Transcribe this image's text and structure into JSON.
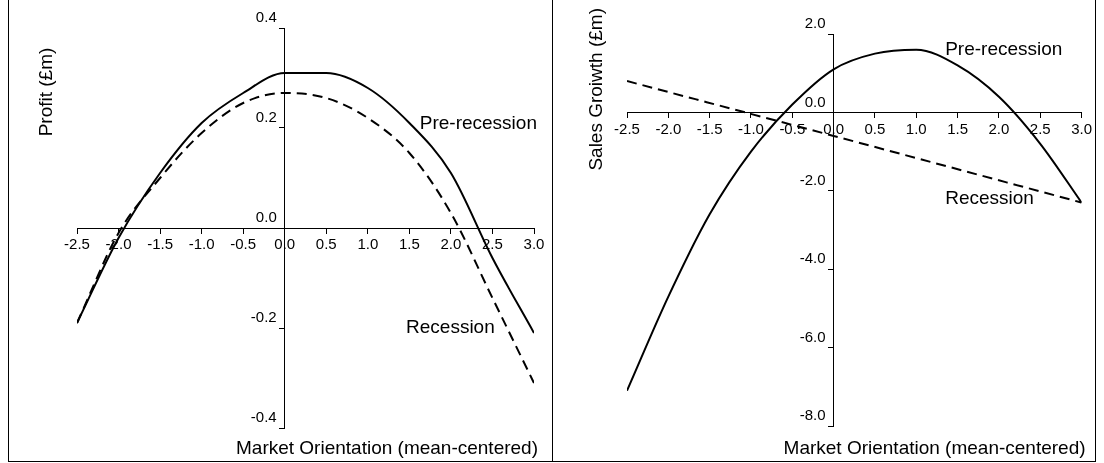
{
  "chart_data": [
    {
      "type": "line",
      "xlabel": "Market Orientation (mean-centered)",
      "ylabel": "Profit (£m)",
      "xlim": [
        -2.5,
        3.0
      ],
      "ylim": [
        -0.4,
        0.4
      ],
      "xticks": [
        {
          "value": -2.5,
          "label": "-2.5"
        },
        {
          "value": -2,
          "label": "-2.0"
        },
        {
          "value": -1.5,
          "label": "-1.5"
        },
        {
          "value": -1,
          "label": "-1.0"
        },
        {
          "value": -0.5,
          "label": "-0.5"
        },
        {
          "value": 0,
          "label": "0.0"
        },
        {
          "value": 0.5,
          "label": "0.5"
        },
        {
          "value": 1,
          "label": "1.0"
        },
        {
          "value": 1.5,
          "label": "1.5"
        },
        {
          "value": 2,
          "label": "2.0"
        },
        {
          "value": 2.5,
          "label": "2.5"
        },
        {
          "value": 3,
          "label": "3.0"
        }
      ],
      "yticks": [
        {
          "value": -0.4,
          "label": "-0.4"
        },
        {
          "value": -0.2,
          "label": "-0.2"
        },
        {
          "value": 0,
          "label": "0.0"
        },
        {
          "value": 0.2,
          "label": "0.2"
        },
        {
          "value": 0.4,
          "label": "0.4"
        }
      ],
      "marker": "none",
      "series": [
        {
          "name": "Pre-recession",
          "color": "#000000",
          "line_style": "solid",
          "x": [
            -2.5,
            -2.0,
            -1.5,
            -1.0,
            -0.5,
            0,
            0.5,
            1.0,
            1.5,
            2.0,
            2.5,
            3.0
          ],
          "values": [
            -0.19,
            -0.02,
            0.11,
            0.21,
            0.27,
            0.31,
            0.31,
            0.28,
            0.21,
            0.11,
            -0.06,
            -0.21
          ]
        },
        {
          "name": "Recession",
          "color": "#000000",
          "line_style": "dashed",
          "x": [
            -2.5,
            -2.0,
            -1.5,
            -1.0,
            -0.5,
            0,
            0.5,
            1.0,
            1.5,
            2.0,
            2.5,
            3.0
          ],
          "values": [
            -0.19,
            -0.01,
            0.1,
            0.19,
            0.25,
            0.27,
            0.26,
            0.22,
            0.15,
            0.03,
            -0.14,
            -0.31
          ]
        }
      ]
    },
    {
      "type": "line",
      "xlabel": "Market Orientation (mean-centered)",
      "ylabel": "Sales Groiwth (£m)",
      "xlim": [
        -2.5,
        3.0
      ],
      "ylim": [
        -8.0,
        2.0
      ],
      "xticks": [
        {
          "value": -2.5,
          "label": "-2.5"
        },
        {
          "value": -2,
          "label": "-2.0"
        },
        {
          "value": -1.5,
          "label": "-1.5"
        },
        {
          "value": -1,
          "label": "-1.0"
        },
        {
          "value": -0.5,
          "label": "-0.5"
        },
        {
          "value": 0,
          "label": "0.0"
        },
        {
          "value": 0.5,
          "label": "0.5"
        },
        {
          "value": 1,
          "label": "1.0"
        },
        {
          "value": 1.5,
          "label": "1.5"
        },
        {
          "value": 2,
          "label": "2.0"
        },
        {
          "value": 2.5,
          "label": "2.5"
        },
        {
          "value": 3,
          "label": "3.0"
        }
      ],
      "yticks": [
        {
          "value": -8,
          "label": "-8.0"
        },
        {
          "value": -6,
          "label": "-6.0"
        },
        {
          "value": -4,
          "label": "-4.0"
        },
        {
          "value": -2,
          "label": "-2.0"
        },
        {
          "value": 0,
          "label": "0.0"
        },
        {
          "value": 2,
          "label": "2.0"
        }
      ],
      "marker": "none",
      "series": [
        {
          "name": "Pre-recession",
          "color": "#000000",
          "line_style": "solid",
          "x": [
            -2.5,
            -2.0,
            -1.5,
            -1.0,
            -0.5,
            0,
            0.5,
            1.0,
            1.5,
            2.0,
            2.5,
            3.0
          ],
          "values": [
            -7.1,
            -4.7,
            -2.6,
            -1.0,
            0.2,
            1.1,
            1.5,
            1.6,
            1.2,
            0.4,
            -0.8,
            -2.3
          ]
        },
        {
          "name": "Recession",
          "color": "#000000",
          "line_style": "dashed",
          "x": [
            -2.5,
            0,
            3.0
          ],
          "values": [
            0.8,
            -0.6,
            -2.3
          ]
        }
      ]
    }
  ]
}
